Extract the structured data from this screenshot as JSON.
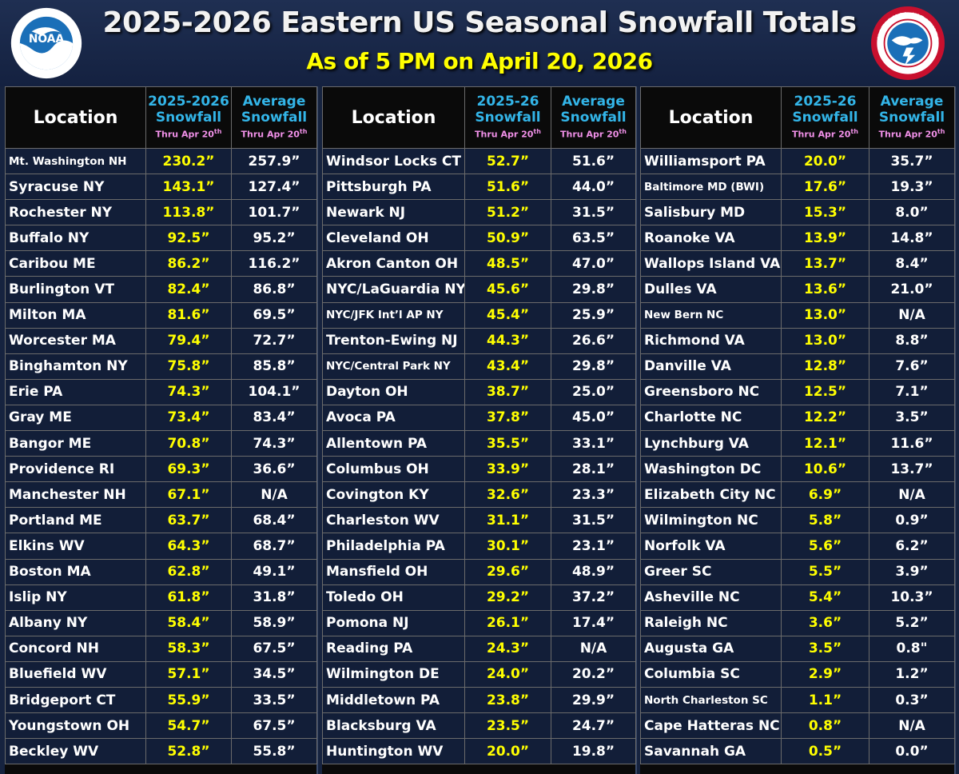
{
  "header": {
    "title": "2025-2026 Eastern US Seasonal Snowfall Totals",
    "subtitle": "As of 5 PM on April 20, 2026",
    "logo_left_text": "NOAA",
    "logo_right_text": "NATIONAL WEATHER SERVICE"
  },
  "colors": {
    "background": "#16233f",
    "title_text": "#f2f2f2",
    "subtitle_text": "#ffff00",
    "header_blue": "#33b5e8",
    "thru_pink": "#f090e8",
    "current_value": "#ffff00",
    "average_value": "#ffffff"
  },
  "chart_data": {
    "type": "table",
    "title": "2025-2026 Eastern US Seasonal Snowfall Totals",
    "subtitle": "As of 5 PM on April 20, 2026",
    "panels": [
      {
        "headers": {
          "location": "Location",
          "current_l1": "2025-2026",
          "current_l2": "Snowfall",
          "current_thru": "Thru Apr 20",
          "current_thru_sup": "th",
          "average_l1": "Average",
          "average_l2": "Snowfall",
          "average_thru": "Thru Apr 20",
          "average_thru_sup": "th"
        },
        "rows": [
          {
            "location": "Mt. Washington NH",
            "current": "230.2”",
            "average": "257.9”",
            "small": true
          },
          {
            "location": "Syracuse NY",
            "current": "143.1”",
            "average": "127.4”"
          },
          {
            "location": "Rochester NY",
            "current": "113.8”",
            "average": "101.7”"
          },
          {
            "location": "Buffalo NY",
            "current": "92.5”",
            "average": "95.2”"
          },
          {
            "location": "Caribou ME",
            "current": "86.2”",
            "average": "116.2”"
          },
          {
            "location": "Burlington VT",
            "current": "82.4”",
            "average": "86.8”"
          },
          {
            "location": "Milton MA",
            "current": "81.6”",
            "average": "69.5”"
          },
          {
            "location": "Worcester MA",
            "current": "79.4”",
            "average": "72.7”"
          },
          {
            "location": "Binghamton NY",
            "current": "75.8”",
            "average": "85.8”"
          },
          {
            "location": "Erie PA",
            "current": "74.3”",
            "average": "104.1”"
          },
          {
            "location": "Gray ME",
            "current": "73.4”",
            "average": "83.4”"
          },
          {
            "location": "Bangor ME",
            "current": "70.8”",
            "average": "74.3”"
          },
          {
            "location": "Providence RI",
            "current": "69.3”",
            "average": "36.6”"
          },
          {
            "location": "Manchester NH",
            "current": "67.1”",
            "average": "N/A"
          },
          {
            "location": "Portland ME",
            "current": "63.7”",
            "average": "68.4”"
          },
          {
            "location": "Elkins WV",
            "current": "64.3”",
            "average": "68.7”"
          },
          {
            "location": "Boston MA",
            "current": "62.8”",
            "average": "49.1”"
          },
          {
            "location": "Islip NY",
            "current": "61.8”",
            "average": "31.8”"
          },
          {
            "location": "Albany NY",
            "current": "58.4”",
            "average": "58.9”"
          },
          {
            "location": "Concord NH",
            "current": "58.3”",
            "average": "67.5”"
          },
          {
            "location": "Bluefield WV",
            "current": "57.1”",
            "average": "34.5”"
          },
          {
            "location": "Bridgeport CT",
            "current": "55.9”",
            "average": "33.5”"
          },
          {
            "location": "Youngstown OH",
            "current": "54.7”",
            "average": "67.5”"
          },
          {
            "location": "Beckley WV",
            "current": "52.8”",
            "average": "55.8”"
          }
        ]
      },
      {
        "headers": {
          "location": "Location",
          "current_l1": "2025-26",
          "current_l2": "Snowfall",
          "current_thru": "Thru Apr 20",
          "current_thru_sup": "th",
          "average_l1": "Average",
          "average_l2": "Snowfall",
          "average_thru": "Thru Apr 20",
          "average_thru_sup": "th"
        },
        "rows": [
          {
            "location": "Windsor Locks CT",
            "current": "52.7”",
            "average": "51.6”"
          },
          {
            "location": "Pittsburgh PA",
            "current": "51.6”",
            "average": "44.0”"
          },
          {
            "location": "Newark NJ",
            "current": "51.2”",
            "average": "31.5”"
          },
          {
            "location": "Cleveland OH",
            "current": "50.9”",
            "average": "63.5”"
          },
          {
            "location": "Akron Canton OH",
            "current": "48.5”",
            "average": "47.0”"
          },
          {
            "location": "NYC/LaGuardia NY",
            "current": "45.6”",
            "average": "29.8”"
          },
          {
            "location": "NYC/JFK Int’l AP NY",
            "current": "45.4”",
            "average": "25.9”",
            "small": true
          },
          {
            "location": "Trenton-Ewing NJ",
            "current": "44.3”",
            "average": "26.6”"
          },
          {
            "location": "NYC/Central Park NY",
            "current": "43.4”",
            "average": "29.8”",
            "small": true
          },
          {
            "location": "Dayton OH",
            "current": "38.7”",
            "average": "25.0”"
          },
          {
            "location": "Avoca PA",
            "current": "37.8”",
            "average": "45.0”"
          },
          {
            "location": "Allentown PA",
            "current": "35.5”",
            "average": "33.1”"
          },
          {
            "location": "Columbus OH",
            "current": "33.9”",
            "average": "28.1”"
          },
          {
            "location": "Covington KY",
            "current": "32.6”",
            "average": "23.3”"
          },
          {
            "location": "Charleston WV",
            "current": "31.1”",
            "average": "31.5”"
          },
          {
            "location": "Philadelphia PA",
            "current": "30.1”",
            "average": "23.1”"
          },
          {
            "location": "Mansfield OH",
            "current": "29.6”",
            "average": "48.9”"
          },
          {
            "location": "Toledo OH",
            "current": "29.2”",
            "average": "37.2”"
          },
          {
            "location": "Pomona NJ",
            "current": "26.1”",
            "average": "17.4”"
          },
          {
            "location": "Reading PA",
            "current": "24.3”",
            "average": "N/A"
          },
          {
            "location": "Wilmington DE",
            "current": "24.0”",
            "average": "20.2”"
          },
          {
            "location": "Middletown PA",
            "current": "23.8”",
            "average": "29.9”"
          },
          {
            "location": "Blacksburg VA",
            "current": "23.5”",
            "average": "24.7”"
          },
          {
            "location": "Huntington WV",
            "current": "20.0”",
            "average": "19.8”"
          }
        ]
      },
      {
        "headers": {
          "location": "Location",
          "current_l1": "2025-26",
          "current_l2": "Snowfall",
          "current_thru": "Thru Apr 20",
          "current_thru_sup": "th",
          "average_l1": "Average",
          "average_l2": "Snowfall",
          "average_thru": "Thru Apr 20",
          "average_thru_sup": "th"
        },
        "rows": [
          {
            "location": "Williamsport PA",
            "current": "20.0”",
            "average": "35.7”"
          },
          {
            "location": "Baltimore MD (BWI)",
            "current": "17.6”",
            "average": "19.3”",
            "small": true
          },
          {
            "location": "Salisbury MD",
            "current": "15.3”",
            "average": "8.0”"
          },
          {
            "location": "Roanoke VA",
            "current": "13.9”",
            "average": "14.8”"
          },
          {
            "location": "Wallops Island VA",
            "current": "13.7”",
            "average": "8.4”"
          },
          {
            "location": "Dulles VA",
            "current": "13.6”",
            "average": "21.0”"
          },
          {
            "location": "New Bern NC",
            "current": "13.0”",
            "average": "N/A",
            "small": true
          },
          {
            "location": "Richmond VA",
            "current": "13.0”",
            "average": "8.8”"
          },
          {
            "location": "Danville VA",
            "current": "12.8”",
            "average": "7.6”"
          },
          {
            "location": "Greensboro NC",
            "current": "12.5”",
            "average": "7.1”"
          },
          {
            "location": "Charlotte NC",
            "current": "12.2”",
            "average": "3.5”"
          },
          {
            "location": "Lynchburg VA",
            "current": "12.1”",
            "average": "11.6”"
          },
          {
            "location": "Washington DC",
            "current": "10.6”",
            "average": "13.7”"
          },
          {
            "location": "Elizabeth City NC",
            "current": "6.9”",
            "average": "N/A"
          },
          {
            "location": "Wilmington NC",
            "current": "5.8”",
            "average": "0.9”"
          },
          {
            "location": "Norfolk VA",
            "current": "5.6”",
            "average": "6.2”"
          },
          {
            "location": "Greer SC",
            "current": "5.5”",
            "average": "3.9”"
          },
          {
            "location": "Asheville NC",
            "current": "5.4”",
            "average": "10.3”"
          },
          {
            "location": "Raleigh NC",
            "current": "3.6”",
            "average": "5.2”"
          },
          {
            "location": "Augusta GA",
            "current": "3.5”",
            "average": "0.8\""
          },
          {
            "location": "Columbia SC",
            "current": "2.9”",
            "average": "1.2”"
          },
          {
            "location": "North Charleston SC",
            "current": "1.1”",
            "average": "0.3”",
            "small": true
          },
          {
            "location": "Cape Hatteras NC",
            "current": "0.8”",
            "average": "N/A"
          },
          {
            "location": "Savannah GA",
            "current": "0.5”",
            "average": "0.0”"
          }
        ]
      }
    ]
  }
}
